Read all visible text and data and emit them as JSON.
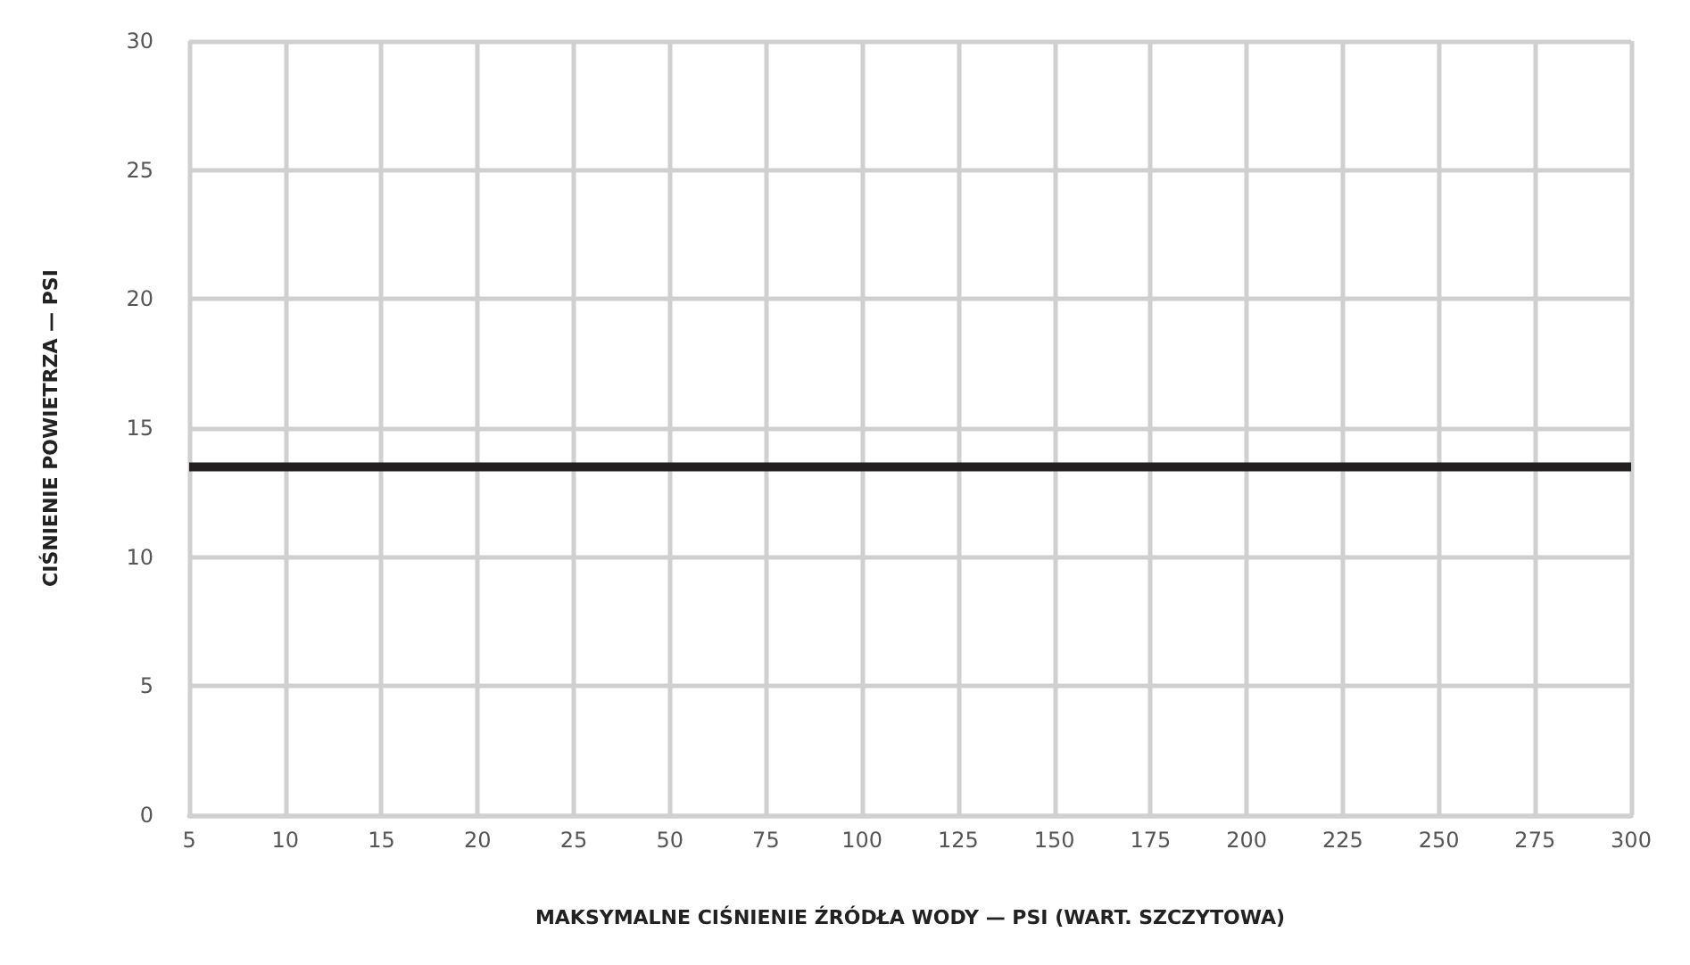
{
  "chart_data": {
    "type": "line",
    "xlabel": "MAKSYMALNE CIŚNIENIE ŹRÓDŁA WODY — PSI (WART. SZCZYTOWA)",
    "ylabel": "CIŚNIENIE POWIETRZA — PSI",
    "categories": [
      "5",
      "10",
      "15",
      "20",
      "25",
      "50",
      "75",
      "100",
      "125",
      "150",
      "175",
      "200",
      "225",
      "250",
      "275",
      "300"
    ],
    "series": [
      {
        "color": "#231f20",
        "values": [
          13.5,
          13.5,
          13.5,
          13.5,
          13.5,
          13.5,
          13.5,
          13.5,
          13.5,
          13.5,
          13.5,
          13.5,
          13.5,
          13.5,
          13.5,
          13.5
        ]
      }
    ],
    "ylim": [
      0,
      30
    ],
    "yticks": [
      0,
      5,
      10,
      15,
      20,
      25,
      30
    ],
    "grid": true,
    "marker": "none",
    "line_style": "solid"
  }
}
